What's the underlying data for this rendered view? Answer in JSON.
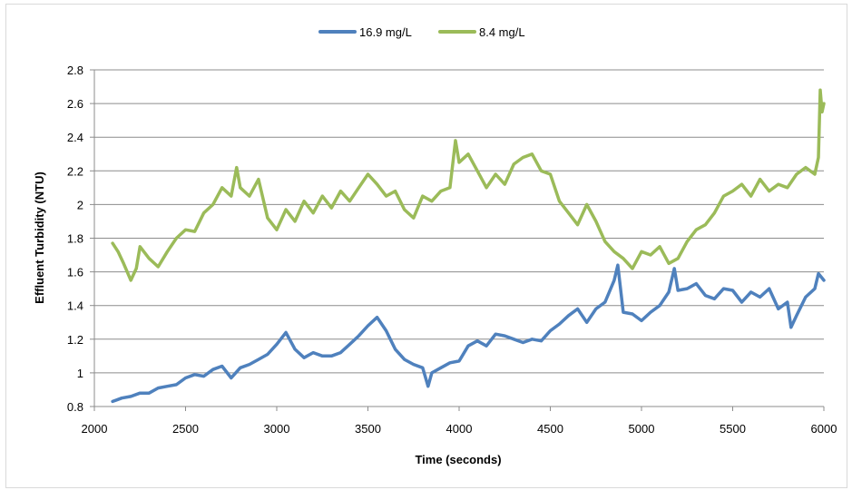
{
  "chart_data": {
    "type": "line",
    "title": "",
    "xlabel": "Time (seconds)",
    "ylabel": "Effluent Turbidity (NTU)",
    "xlim": [
      2000,
      6000
    ],
    "ylim": [
      0.8,
      2.8
    ],
    "x_ticks": [
      2000,
      2500,
      3000,
      3500,
      4000,
      4500,
      5000,
      5500,
      6000
    ],
    "y_ticks": [
      0.8,
      1,
      1.2,
      1.4,
      1.6,
      1.8,
      2,
      2.2,
      2.4,
      2.6,
      2.8
    ],
    "x_tick_labels": [
      "2000",
      "2500",
      "3000",
      "3500",
      "4000",
      "4500",
      "5000",
      "5500",
      "6000"
    ],
    "y_tick_labels": [
      "0.8",
      "1",
      "1.2",
      "1.4",
      "1.6",
      "1.8",
      "2",
      "2.2",
      "2.4",
      "2.6",
      "2.8"
    ],
    "grid": "horizontal",
    "legend_position": "top",
    "series": [
      {
        "name": "16.9 mg/L",
        "color": "#4f81bd",
        "x": [
          2100,
          2150,
          2200,
          2250,
          2300,
          2350,
          2400,
          2450,
          2500,
          2550,
          2600,
          2650,
          2700,
          2750,
          2800,
          2850,
          2900,
          2950,
          3000,
          3050,
          3100,
          3150,
          3200,
          3250,
          3300,
          3350,
          3400,
          3450,
          3500,
          3550,
          3600,
          3650,
          3700,
          3750,
          3800,
          3830,
          3850,
          3900,
          3950,
          4000,
          4050,
          4100,
          4150,
          4200,
          4250,
          4300,
          4350,
          4400,
          4450,
          4500,
          4550,
          4600,
          4650,
          4700,
          4750,
          4800,
          4850,
          4870,
          4900,
          4950,
          5000,
          5050,
          5100,
          5150,
          5180,
          5200,
          5250,
          5300,
          5350,
          5400,
          5450,
          5500,
          5550,
          5600,
          5650,
          5700,
          5750,
          5800,
          5820,
          5850,
          5900,
          5950,
          5970,
          6000
        ],
        "values": [
          0.83,
          0.85,
          0.86,
          0.88,
          0.88,
          0.91,
          0.92,
          0.93,
          0.97,
          0.99,
          0.98,
          1.02,
          1.04,
          0.97,
          1.03,
          1.05,
          1.08,
          1.11,
          1.17,
          1.24,
          1.14,
          1.09,
          1.12,
          1.1,
          1.1,
          1.12,
          1.17,
          1.22,
          1.28,
          1.33,
          1.25,
          1.14,
          1.08,
          1.05,
          1.03,
          0.92,
          1.0,
          1.03,
          1.06,
          1.07,
          1.16,
          1.19,
          1.16,
          1.23,
          1.22,
          1.2,
          1.18,
          1.2,
          1.19,
          1.25,
          1.29,
          1.34,
          1.38,
          1.3,
          1.38,
          1.42,
          1.55,
          1.64,
          1.36,
          1.35,
          1.31,
          1.36,
          1.4,
          1.48,
          1.62,
          1.49,
          1.5,
          1.53,
          1.46,
          1.44,
          1.5,
          1.49,
          1.42,
          1.48,
          1.45,
          1.5,
          1.38,
          1.42,
          1.27,
          1.34,
          1.45,
          1.5,
          1.59,
          1.55
        ]
      },
      {
        "name": "8.4 mg/L",
        "color": "#9bbb59",
        "x": [
          2100,
          2130,
          2160,
          2200,
          2230,
          2250,
          2300,
          2350,
          2400,
          2450,
          2500,
          2550,
          2600,
          2650,
          2700,
          2750,
          2780,
          2800,
          2850,
          2900,
          2950,
          3000,
          3050,
          3100,
          3150,
          3200,
          3250,
          3300,
          3350,
          3400,
          3450,
          3500,
          3550,
          3600,
          3650,
          3700,
          3750,
          3800,
          3850,
          3900,
          3950,
          3980,
          4000,
          4050,
          4100,
          4150,
          4200,
          4250,
          4300,
          4350,
          4400,
          4450,
          4500,
          4550,
          4600,
          4650,
          4700,
          4750,
          4800,
          4850,
          4900,
          4950,
          5000,
          5050,
          5100,
          5150,
          5200,
          5250,
          5300,
          5350,
          5400,
          5450,
          5500,
          5550,
          5600,
          5650,
          5700,
          5750,
          5800,
          5850,
          5900,
          5950,
          5970,
          5980,
          5990,
          6000
        ],
        "values": [
          1.77,
          1.72,
          1.65,
          1.55,
          1.62,
          1.75,
          1.68,
          1.63,
          1.72,
          1.8,
          1.85,
          1.84,
          1.95,
          2.0,
          2.1,
          2.05,
          2.22,
          2.1,
          2.05,
          2.15,
          1.92,
          1.85,
          1.97,
          1.9,
          2.02,
          1.95,
          2.05,
          1.98,
          2.08,
          2.02,
          2.1,
          2.18,
          2.12,
          2.05,
          2.08,
          1.97,
          1.92,
          2.05,
          2.02,
          2.08,
          2.1,
          2.38,
          2.25,
          2.3,
          2.2,
          2.1,
          2.18,
          2.12,
          2.24,
          2.28,
          2.3,
          2.2,
          2.18,
          2.02,
          1.95,
          1.88,
          2.0,
          1.9,
          1.78,
          1.72,
          1.68,
          1.62,
          1.72,
          1.7,
          1.75,
          1.65,
          1.68,
          1.78,
          1.85,
          1.88,
          1.95,
          2.05,
          2.08,
          2.12,
          2.05,
          2.15,
          2.08,
          2.12,
          2.1,
          2.18,
          2.22,
          2.18,
          2.28,
          2.68,
          2.55,
          2.6
        ]
      }
    ]
  }
}
